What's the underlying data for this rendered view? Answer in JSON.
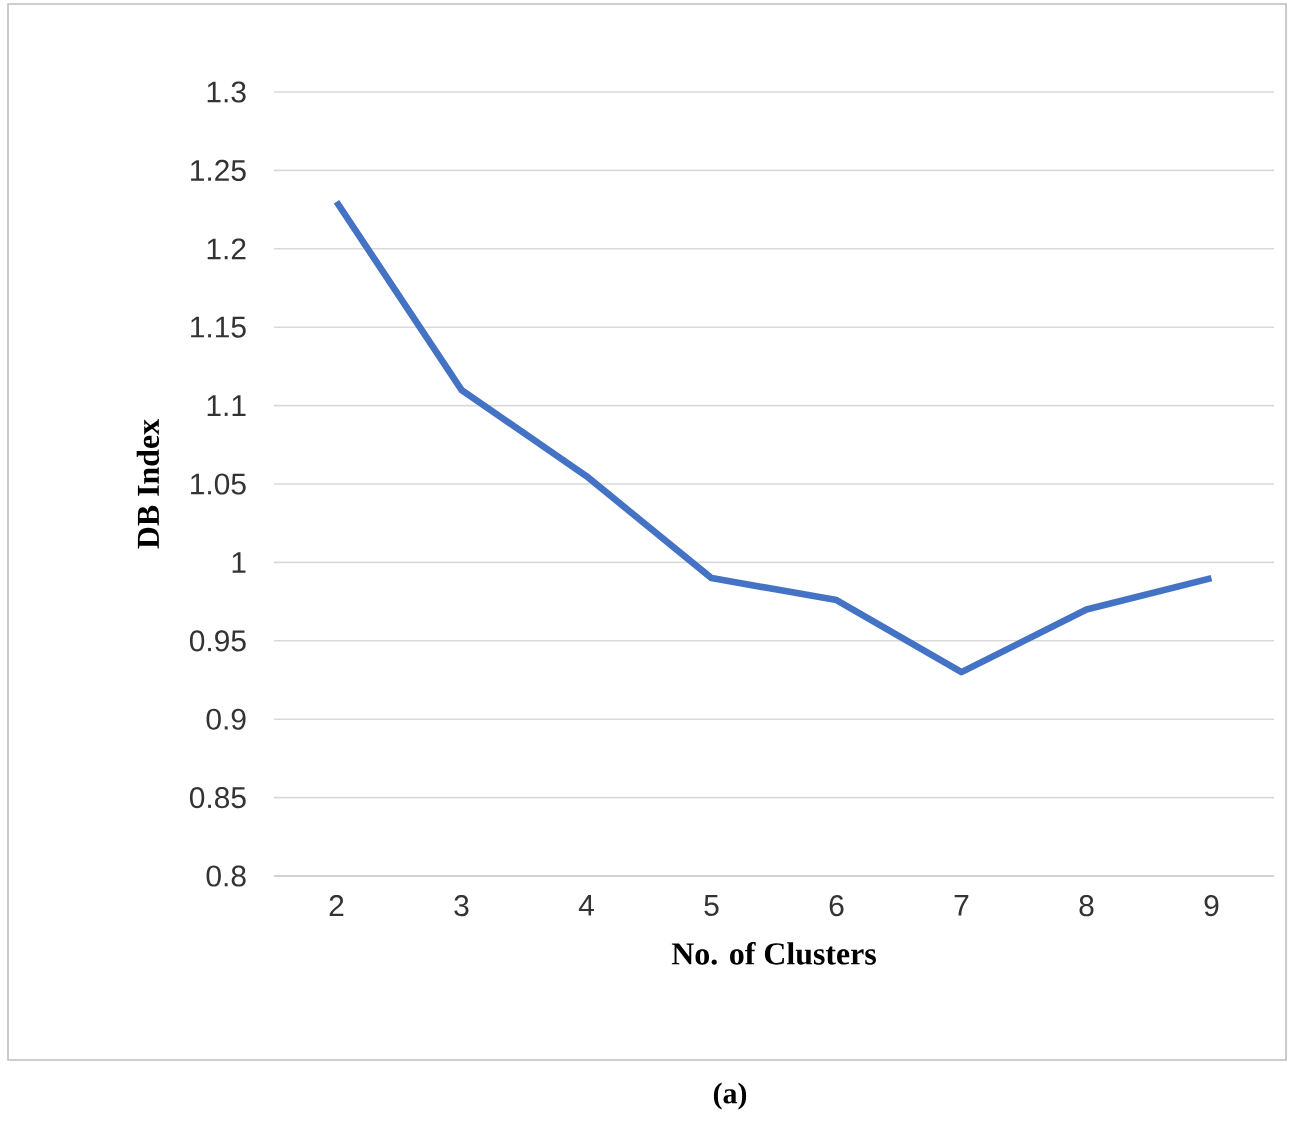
{
  "chart_data": {
    "type": "line",
    "xlabel": "No. of Clusters",
    "ylabel": "DB Index",
    "annotations": [
      "(a)"
    ],
    "categories": [
      "2",
      "3",
      "4",
      "5",
      "6",
      "7",
      "8",
      "9"
    ],
    "series": [
      {
        "color": "#4472c4",
        "values": [
          1.23,
          1.11,
          1.055,
          0.99,
          0.976,
          0.93,
          0.97,
          0.99
        ]
      }
    ],
    "ylim": [
      0.8,
      1.3
    ],
    "yticks": [
      0.8,
      0.85,
      0.9,
      0.95,
      1,
      1.05,
      1.1,
      1.15,
      1.2,
      1.25,
      1.3
    ],
    "grid": "y"
  }
}
